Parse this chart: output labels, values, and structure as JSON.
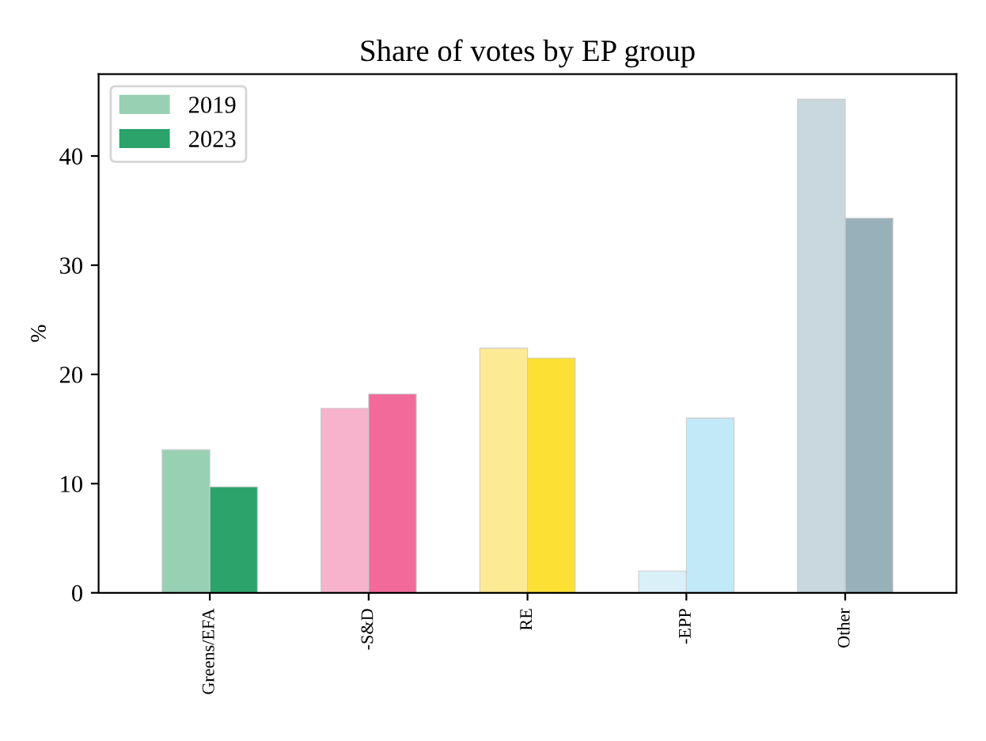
{
  "chart_data": {
    "type": "bar",
    "title": "Share of votes by EP group",
    "ylabel": "%",
    "categories": [
      "Greens/EFA",
      "-S&D",
      "RE",
      "-EPP",
      "Other"
    ],
    "series": [
      {
        "name": "2019",
        "color": "#98d0b4",
        "colors": [
          "#98d0b4",
          "#f7b3cb",
          "#fdea95",
          "#daf0f8",
          "#c9d7de"
        ],
        "values": [
          13.1,
          16.9,
          22.4,
          2.0,
          45.2
        ]
      },
      {
        "name": "2023",
        "color": "#2ba36b",
        "colors": [
          "#2ba36b",
          "#f26a9a",
          "#fde034",
          "#c2e9f8",
          "#98b0ba"
        ],
        "values": [
          9.7,
          18.2,
          21.5,
          16.0,
          34.3
        ]
      }
    ],
    "ylim": [
      0,
      47.5
    ],
    "yticks": [
      0,
      10,
      20,
      30,
      40
    ],
    "grid": false,
    "legend": "top left"
  }
}
